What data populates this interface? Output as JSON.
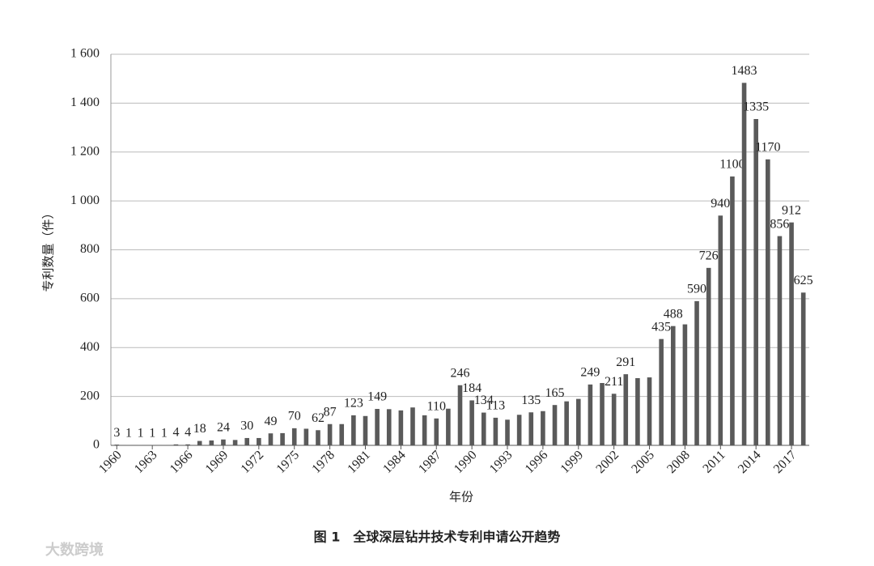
{
  "chart_data": {
    "type": "bar",
    "y_label": "专利数量（件）",
    "x_label": "年份",
    "caption": "图 1　全球深层钻井技术专利申请公开趋势",
    "watermark": "大数跨境",
    "color": "#5a5a5a",
    "grid": true,
    "categories": [
      "1960",
      null,
      null,
      "1963",
      null,
      null,
      "1966",
      null,
      null,
      "1969",
      null,
      null,
      "1972",
      null,
      null,
      "1975",
      null,
      null,
      "1978",
      null,
      null,
      "1981",
      null,
      null,
      "1984",
      null,
      null,
      "1987",
      null,
      null,
      "1990",
      null,
      null,
      "1993",
      null,
      null,
      "1996",
      null,
      null,
      "1999",
      null,
      null,
      "2002",
      null,
      null,
      "2005",
      null,
      null,
      "2008",
      null,
      null,
      "2011",
      null,
      null,
      "2014",
      null,
      null,
      "2017",
      null
    ],
    "values": [
      3,
      1,
      1,
      1,
      1,
      4,
      4,
      18,
      20,
      24,
      22,
      30,
      30,
      49,
      50,
      70,
      68,
      62,
      87,
      87,
      123,
      120,
      149,
      148,
      143,
      155,
      123,
      110,
      150,
      246,
      184,
      134,
      113,
      105,
      125,
      135,
      140,
      165,
      180,
      190,
      249,
      255,
      211,
      291,
      275,
      278,
      435,
      488,
      495,
      590,
      726,
      940,
      1100,
      1483,
      1335,
      1170,
      856,
      912,
      625
    ],
    "value_labels": [
      "3",
      "1",
      "1",
      "1",
      "1",
      "4",
      "4",
      "18",
      null,
      "24",
      null,
      "30",
      null,
      "49",
      null,
      "70",
      null,
      "62",
      "87",
      null,
      "123",
      null,
      "149",
      null,
      null,
      null,
      null,
      "110",
      null,
      "246",
      "184",
      "134",
      "113",
      null,
      null,
      "135",
      null,
      "165",
      null,
      null,
      "249",
      null,
      "211",
      "291",
      null,
      null,
      "435",
      "488",
      null,
      "590",
      "726",
      "940",
      "1100",
      "1483",
      "1335",
      "1170",
      "856",
      "912",
      "625"
    ],
    "ylim": [
      0,
      1600
    ],
    "yticks": [
      0,
      200,
      400,
      600,
      800,
      {
        "value": 1000,
        "label": "1 000"
      },
      {
        "value": 1200,
        "label": "1 200"
      },
      {
        "value": 1400,
        "label": "1 400"
      },
      {
        "value": 1600,
        "label": "1 600"
      }
    ]
  }
}
